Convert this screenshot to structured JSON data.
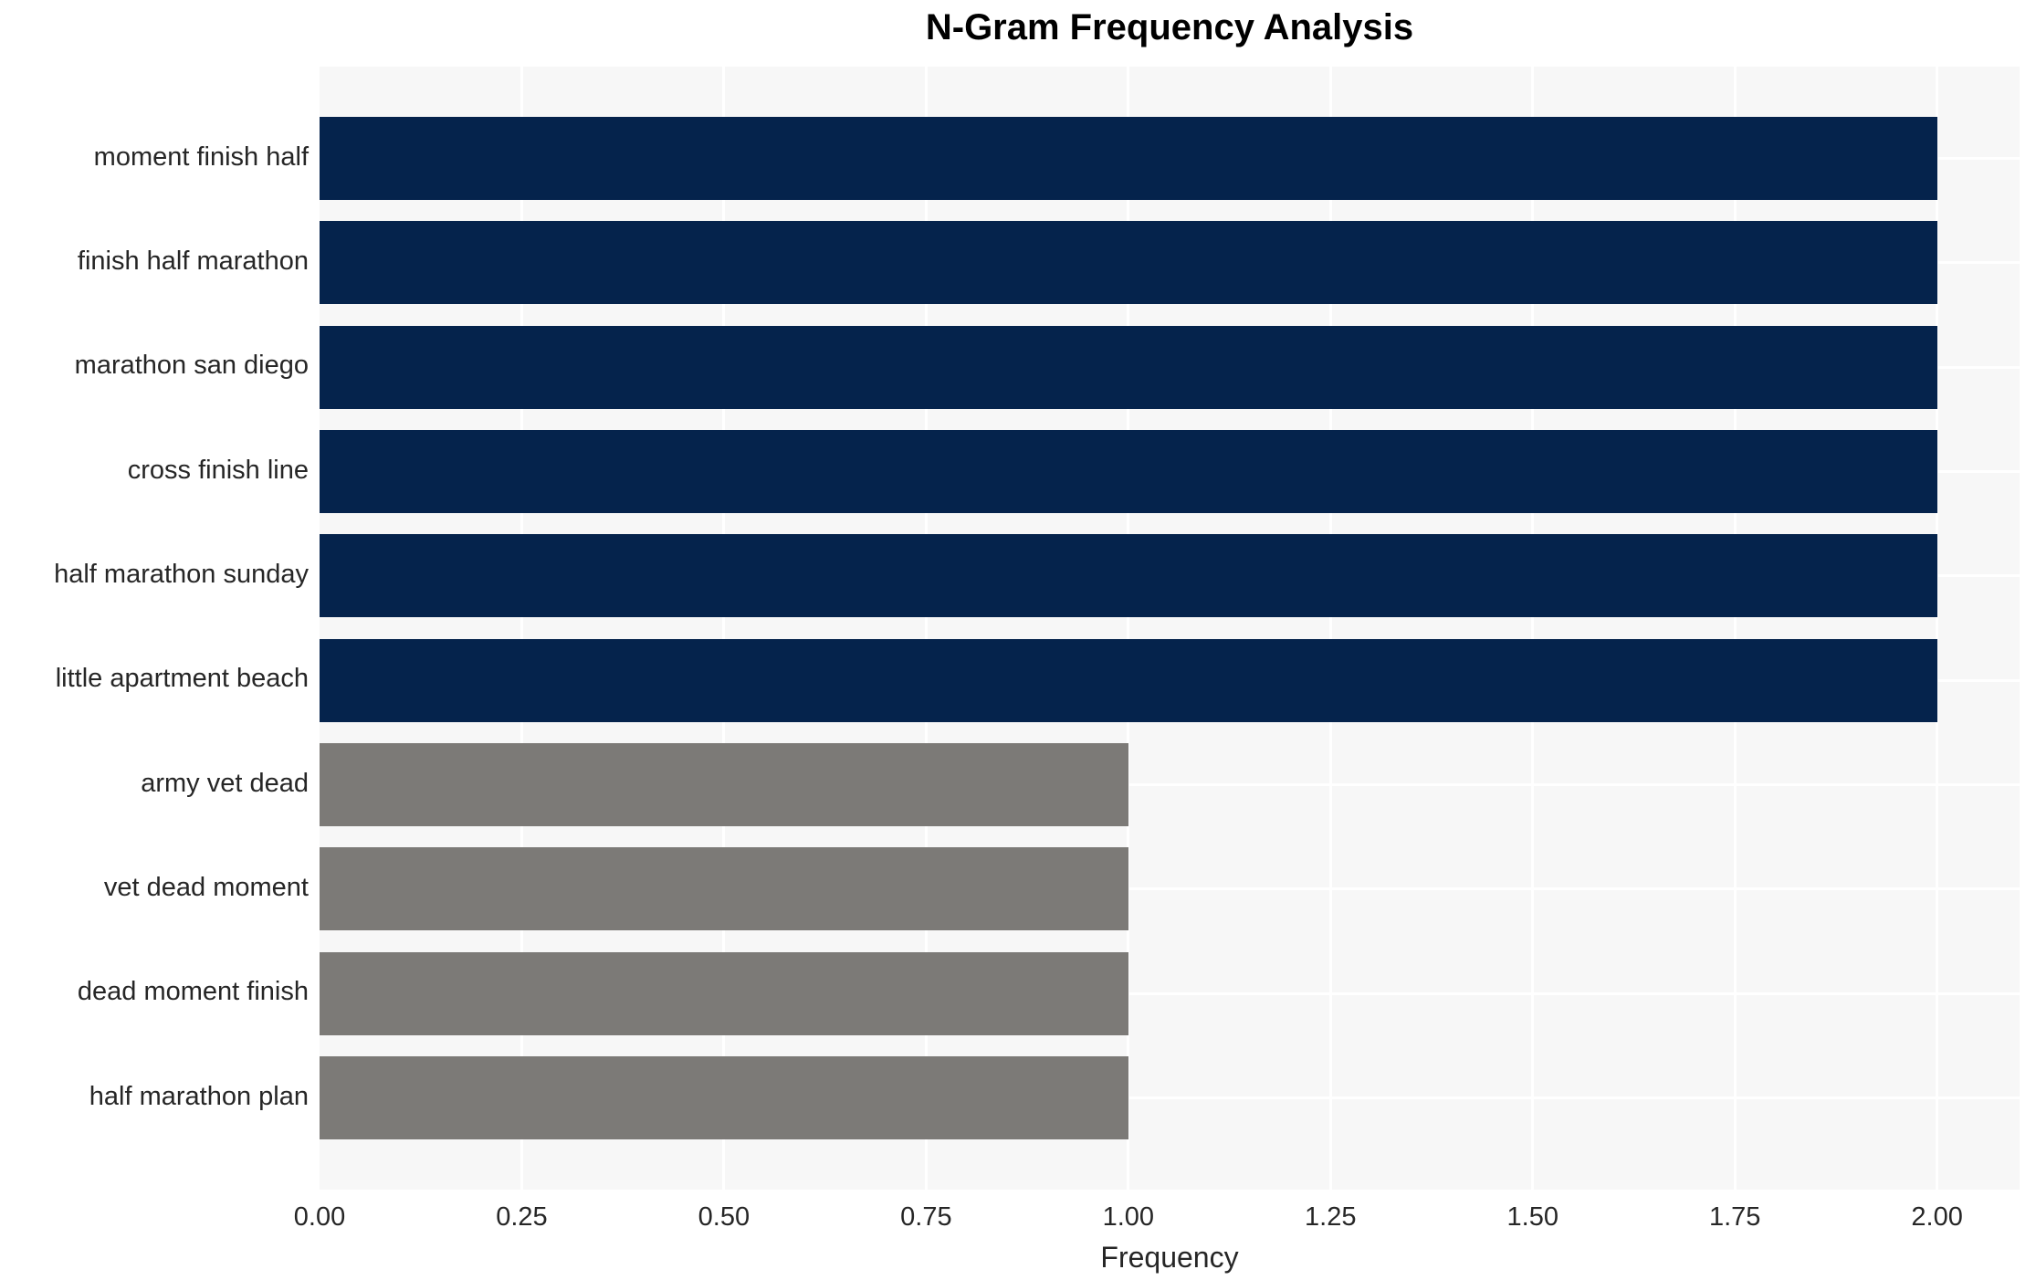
{
  "chart_data": {
    "type": "bar",
    "orientation": "horizontal",
    "title": "N-Gram Frequency Analysis",
    "xlabel": "Frequency",
    "ylabel": "",
    "categories": [
      "moment finish half",
      "finish half marathon",
      "marathon san diego",
      "cross finish line",
      "half marathon sunday",
      "little apartment beach",
      "army vet dead",
      "vet dead moment",
      "dead moment finish",
      "half marathon plan"
    ],
    "values": [
      2,
      2,
      2,
      2,
      2,
      2,
      1,
      1,
      1,
      1
    ],
    "bar_colors": [
      "#05234C",
      "#05234C",
      "#05234C",
      "#05234C",
      "#05234C",
      "#05234C",
      "#7C7A77",
      "#7C7A77",
      "#7C7A77",
      "#7C7A77"
    ],
    "xlim": [
      0,
      2.102
    ],
    "xticks": {
      "values": [
        0,
        0.25,
        0.5,
        0.75,
        1.0,
        1.25,
        1.5,
        1.75,
        2.0
      ],
      "labels": [
        "0.00",
        "0.25",
        "0.50",
        "0.75",
        "1.00",
        "1.25",
        "1.50",
        "1.75",
        "2.00"
      ]
    },
    "legend": "none",
    "grid": true,
    "style": {
      "panel_background": "#f7f7f7",
      "gridline_color": "#ffffff",
      "navy_bar_color": "#05234C",
      "gray_bar_color": "#7C7A77",
      "text_color": "#262626",
      "title_color": "#000000"
    }
  }
}
